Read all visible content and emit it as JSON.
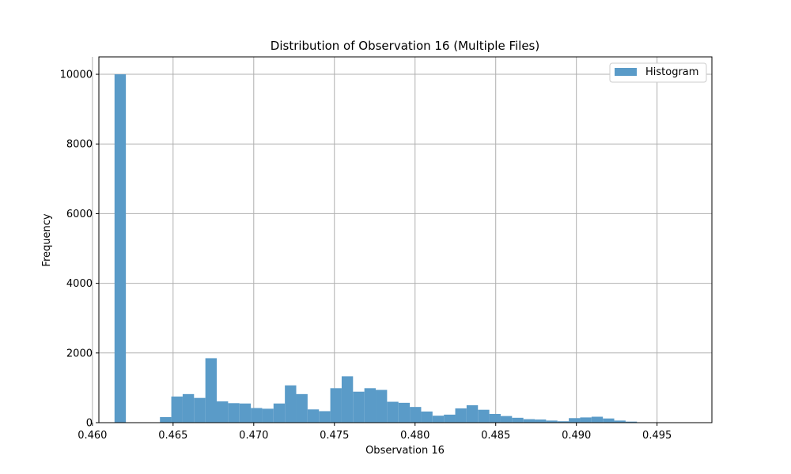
{
  "chart_data": {
    "type": "bar",
    "title": "Distribution of Observation 16 (Multiple Files)",
    "xlabel": "Observation 16",
    "ylabel": "Frequency",
    "xlim": [
      0.4604,
      0.4984
    ],
    "ylim": [
      0,
      10500
    ],
    "x_ticks": [
      0.46,
      0.465,
      0.47,
      0.475,
      0.48,
      0.485,
      0.49,
      0.495
    ],
    "x_tick_labels": [
      "0.460",
      "0.465",
      "0.470",
      "0.475",
      "0.480",
      "0.485",
      "0.490",
      "0.495"
    ],
    "y_ticks": [
      0,
      2000,
      4000,
      6000,
      8000,
      10000
    ],
    "y_tick_labels": [
      "0",
      "2000",
      "4000",
      "6000",
      "8000",
      "10000"
    ],
    "grid": true,
    "legend_position": "top-right",
    "bar_color": "#5a9bc8",
    "series": [
      {
        "name": "Histogram",
        "bin_start": 0.46137,
        "bin_width": 0.000704,
        "counts": [
          10000,
          0,
          0,
          0,
          160,
          750,
          820,
          710,
          1850,
          610,
          560,
          550,
          420,
          400,
          550,
          1070,
          820,
          380,
          330,
          990,
          1330,
          890,
          990,
          940,
          600,
          570,
          450,
          320,
          200,
          230,
          410,
          500,
          370,
          250,
          190,
          140,
          100,
          90,
          60,
          40,
          130,
          150,
          170,
          120,
          60,
          30,
          10,
          5,
          3,
          2,
          2
        ]
      }
    ]
  }
}
